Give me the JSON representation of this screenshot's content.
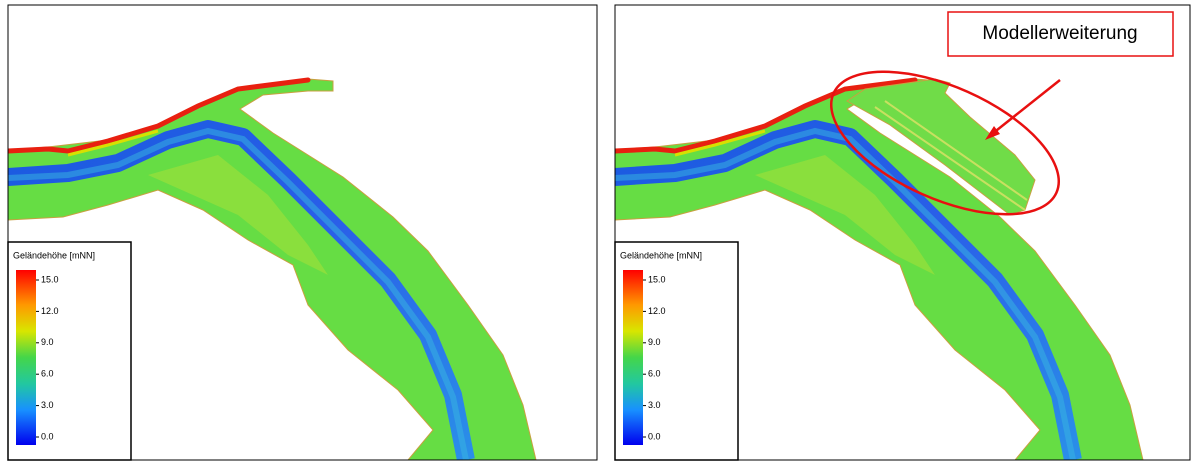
{
  "panels": [
    {
      "legend": {
        "title": "Geländehöhe [mNN]",
        "ticks": [
          {
            "value": 15,
            "label": "15.0"
          },
          {
            "value": 12,
            "label": "12.0"
          },
          {
            "value": 9,
            "label": "9.0"
          },
          {
            "value": 6,
            "label": "6.0"
          },
          {
            "value": 3,
            "label": "3.0"
          },
          {
            "value": 0,
            "label": "0.0"
          }
        ]
      }
    },
    {
      "legend": {
        "title": "Geländehöhe [mNN]",
        "ticks": [
          {
            "value": 15,
            "label": "15.0"
          },
          {
            "value": 12,
            "label": "12.0"
          },
          {
            "value": 9,
            "label": "9.0"
          },
          {
            "value": 6,
            "label": "6.0"
          },
          {
            "value": 3,
            "label": "3.0"
          },
          {
            "value": 0,
            "label": "0.0"
          }
        ]
      },
      "annotation": "Modellerweiterung"
    }
  ]
}
